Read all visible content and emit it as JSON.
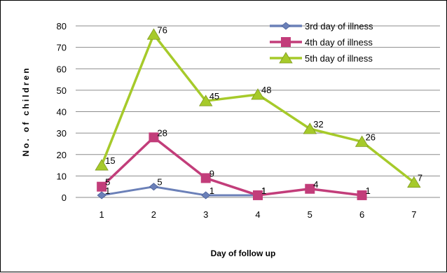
{
  "chart_data": {
    "type": "line",
    "title": "",
    "xlabel": "Day of follow up",
    "ylabel": "No. of children",
    "x": [
      1,
      2,
      3,
      4,
      5,
      6,
      7
    ],
    "ylim": [
      0,
      80
    ],
    "yticks": [
      0,
      10,
      20,
      30,
      40,
      50,
      60,
      70,
      80
    ],
    "grid": true,
    "legend_position": "top-right",
    "series": [
      {
        "name": "3rd day of illness",
        "color": "#6b80b8",
        "marker": "diamond",
        "points": [
          [
            1,
            1
          ],
          [
            2,
            5
          ],
          [
            3,
            1
          ],
          [
            4,
            1
          ]
        ]
      },
      {
        "name": "4th day of illness",
        "color": "#c23d7a",
        "marker": "square",
        "points": [
          [
            1,
            5
          ],
          [
            2,
            28
          ],
          [
            3,
            9
          ],
          [
            4,
            1
          ],
          [
            5,
            4
          ],
          [
            6,
            1
          ]
        ]
      },
      {
        "name": "5th day of illness",
        "color": "#a6ca2a",
        "marker": "triangle",
        "points": [
          [
            1,
            15
          ],
          [
            2,
            76
          ],
          [
            3,
            45
          ],
          [
            4,
            48
          ],
          [
            5,
            32
          ],
          [
            6,
            26
          ],
          [
            7,
            7
          ]
        ]
      }
    ]
  }
}
